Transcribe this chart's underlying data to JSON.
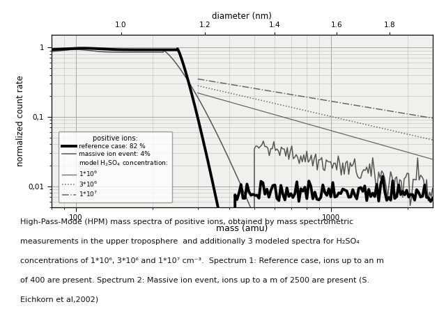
{
  "title": "",
  "xlabel": "mass (amu)",
  "ylabel": "normalized count rate",
  "xlabel_top": "diameter (nm)",
  "xlim": [
    80,
    2500
  ],
  "ylim": [
    0.005,
    1.5
  ],
  "background_color": "#ffffff",
  "plot_bg": "#f0f0ee",
  "grid_color": "#bbbbbb",
  "caption_lines": [
    "High-Pass-Mode (HPM) mass spectra of positive ions, obtained by mass spectrometric",
    "measurements in the upper troposphere  and additionally 3 modeled spectra for H₂SO₄",
    "concentrations of 1*10⁶, 3*10⁶ and 1*10⁷ cm⁻³.  Spectrum 1: Reference case, ions up to an m",
    "of 400 are present. Spectrum 2: Massive ion event, ions up to a m of 2500 are present (S.",
    "Eichkorn et al,2002)"
  ],
  "top_axis_ticks_nm": [
    1.0,
    1.2,
    1.4,
    1.6,
    1.8
  ],
  "top_axis_ticks_mass": [
    150,
    320,
    600,
    1050,
    1700
  ]
}
